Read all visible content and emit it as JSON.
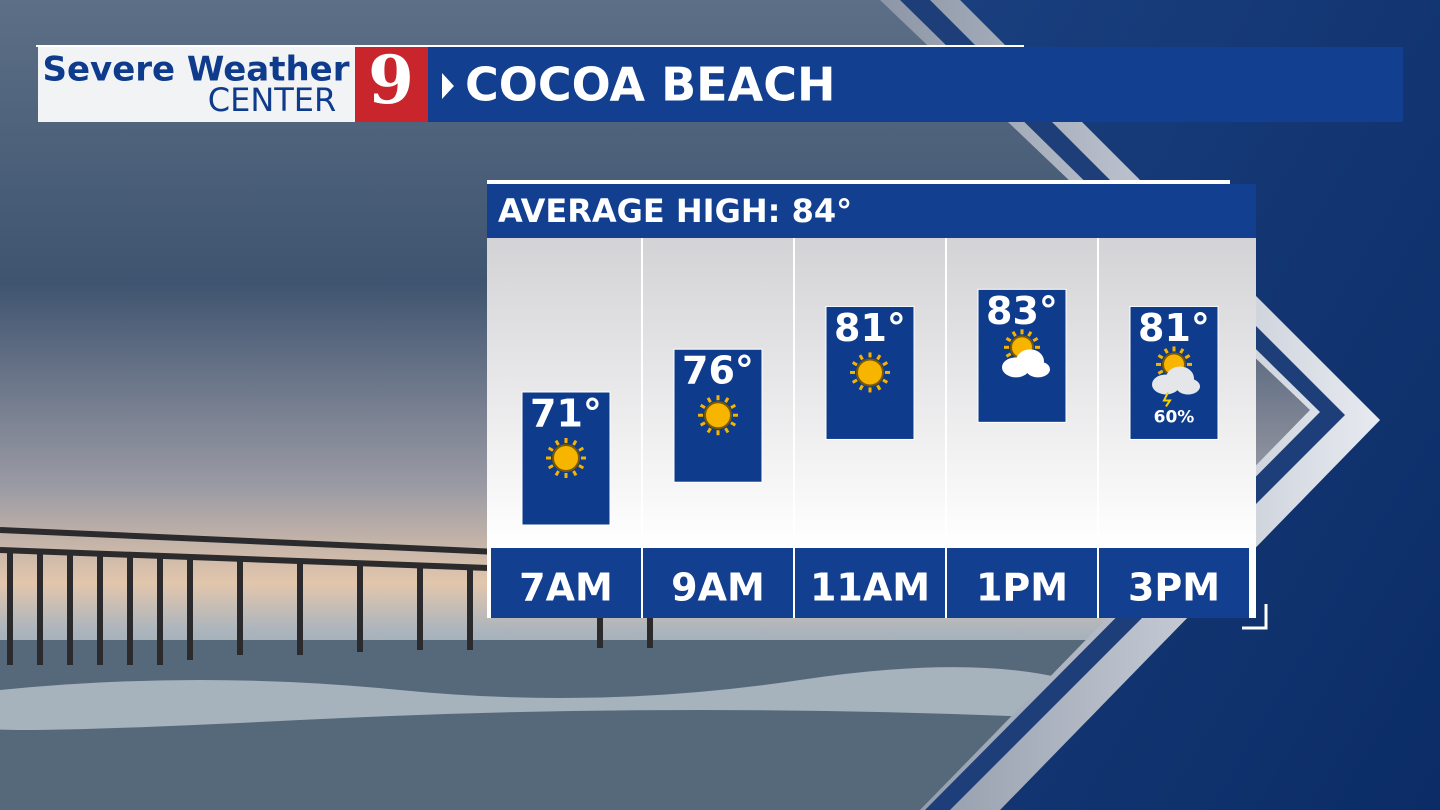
{
  "header": {
    "logo_line1": "Severe Weather",
    "logo_line2": "CENTER",
    "logo_number": "9",
    "location": "COCOA BEACH"
  },
  "chart_data": {
    "type": "bar",
    "title": "AVERAGE HIGH: 84°",
    "categories": [
      "7AM",
      "9AM",
      "11AM",
      "1PM",
      "3PM"
    ],
    "values": [
      71,
      76,
      81,
      83,
      81
    ],
    "value_labels": [
      "71°",
      "76°",
      "81°",
      "83°",
      "81°"
    ],
    "precipitation": [
      null,
      null,
      null,
      null,
      60
    ],
    "precipitation_labels": [
      null,
      null,
      null,
      null,
      "60%"
    ],
    "color": "#0e3b8c",
    "ylim": [
      53,
      89
    ]
  }
}
